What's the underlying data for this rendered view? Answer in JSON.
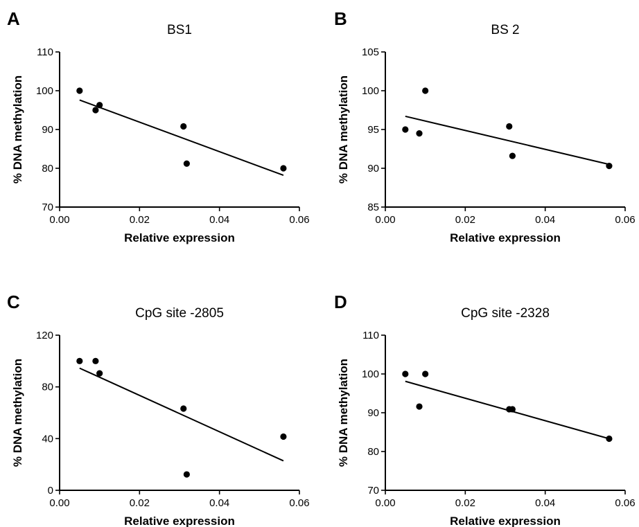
{
  "chart_data": [
    {
      "type": "scatter",
      "panel_letter": "A",
      "title": "BS1",
      "xlabel": "Relative expression",
      "ylabel": "% DNA methylation",
      "xlim": [
        0.0,
        0.06
      ],
      "ylim": [
        70,
        110
      ],
      "xticks": [
        "0.00",
        "0.02",
        "0.04",
        "0.06"
      ],
      "yticks": [
        "70",
        "80",
        "90",
        "100",
        "110"
      ],
      "points": [
        [
          0.005,
          100
        ],
        [
          0.009,
          95
        ],
        [
          0.01,
          96.3
        ],
        [
          0.031,
          90.8
        ],
        [
          0.0318,
          81.2
        ],
        [
          0.056,
          80
        ]
      ],
      "fit_line": [
        [
          0.005,
          97.6
        ],
        [
          0.056,
          78.2
        ]
      ],
      "grid": false
    },
    {
      "type": "scatter",
      "panel_letter": "B",
      "title": "BS 2",
      "xlabel": "Relative expression",
      "ylabel": "% DNA methylation",
      "xlim": [
        0.0,
        0.06
      ],
      "ylim": [
        85,
        105
      ],
      "xticks": [
        "0.00",
        "0.02",
        "0.04",
        "0.06"
      ],
      "yticks": [
        "85",
        "90",
        "95",
        "100",
        "105"
      ],
      "points": [
        [
          0.005,
          95
        ],
        [
          0.0085,
          94.5
        ],
        [
          0.01,
          100
        ],
        [
          0.031,
          95.4
        ],
        [
          0.0318,
          91.6
        ],
        [
          0.056,
          90.3
        ]
      ],
      "fit_line": [
        [
          0.005,
          96.7
        ],
        [
          0.056,
          90.5
        ]
      ],
      "grid": false
    },
    {
      "type": "scatter",
      "panel_letter": "C",
      "title": "CpG site -2805",
      "xlabel": "Relative expression",
      "ylabel": "% DNA methylation",
      "xlim": [
        0.0,
        0.06
      ],
      "ylim": [
        0,
        120
      ],
      "xticks": [
        "0.00",
        "0.02",
        "0.04",
        "0.06"
      ],
      "yticks": [
        "0",
        "40",
        "80",
        "120"
      ],
      "points": [
        [
          0.005,
          100
        ],
        [
          0.009,
          100
        ],
        [
          0.01,
          90.5
        ],
        [
          0.031,
          63.2
        ],
        [
          0.0318,
          12.3
        ],
        [
          0.056,
          41.5
        ]
      ],
      "fit_line": [
        [
          0.005,
          94.5
        ],
        [
          0.056,
          22.8
        ]
      ],
      "grid": false
    },
    {
      "type": "scatter",
      "panel_letter": "D",
      "title": "CpG site -2328",
      "xlabel": "Relative expression",
      "ylabel": "% DNA methylation",
      "xlim": [
        0.0,
        0.06
      ],
      "ylim": [
        70,
        110
      ],
      "xticks": [
        "0.00",
        "0.02",
        "0.04",
        "0.06"
      ],
      "yticks": [
        "70",
        "80",
        "90",
        "100",
        "110"
      ],
      "points": [
        [
          0.005,
          100
        ],
        [
          0.0085,
          91.6
        ],
        [
          0.01,
          100
        ],
        [
          0.031,
          90.9
        ],
        [
          0.0318,
          90.9
        ],
        [
          0.056,
          83.3
        ]
      ],
      "fit_line": [
        [
          0.005,
          98.1
        ],
        [
          0.056,
          83.3
        ]
      ],
      "grid": false
    }
  ]
}
